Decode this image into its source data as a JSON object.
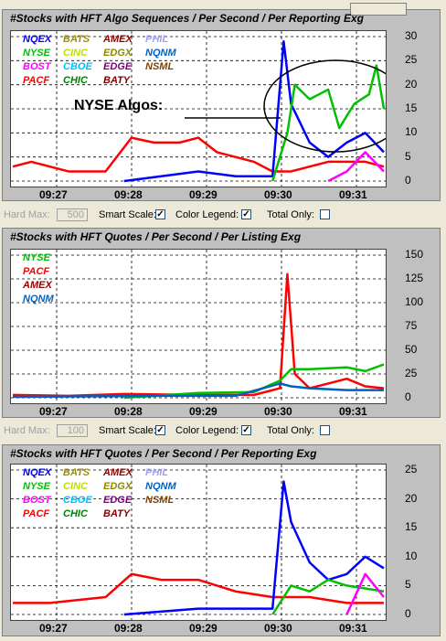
{
  "panels": [
    {
      "id": "p1",
      "title": "#Stocks with HFT Algo Sequences / Per Second / Per Reporting Exg",
      "legend": [
        {
          "name": "NQEX",
          "color": "#0000ff"
        },
        {
          "name": "BATS",
          "color": "#a09000"
        },
        {
          "name": "AMEX",
          "color": "#900000"
        },
        {
          "name": "PHIL",
          "color": "#a0a0ff"
        },
        {
          "name": "NYSE",
          "color": "#00c000"
        },
        {
          "name": "CINC",
          "color": "#c0e000"
        },
        {
          "name": "EDGX",
          "color": "#8a8a00"
        },
        {
          "name": "NQNM",
          "color": "#0060c0"
        },
        {
          "name": "BOST",
          "color": "#ff00ff"
        },
        {
          "name": "CBOE",
          "color": "#00c0ff"
        },
        {
          "name": "EDGE",
          "color": "#800080"
        },
        {
          "name": "NSML",
          "color": "#804000"
        },
        {
          "name": "PACF",
          "color": "#ff0000"
        },
        {
          "name": "CHIC",
          "color": "#008000"
        },
        {
          "name": "BATY",
          "color": "#800000"
        }
      ],
      "yticks": [
        "30",
        "25",
        "20",
        "15",
        "10",
        "5",
        "0"
      ],
      "xticks": [
        "09:27",
        "09:28",
        "09:29",
        "09:30",
        "09:31"
      ],
      "annotation": "NYSE Algos:"
    },
    {
      "id": "p2",
      "title": "#Stocks with HFT Quotes / Per Second / Per Listing Exg",
      "legend": [
        {
          "name": "NYSE",
          "color": "#00c000"
        },
        {
          "name": "PACF",
          "color": "#ff0000"
        },
        {
          "name": "AMEX",
          "color": "#900000"
        },
        {
          "name": "NQNM",
          "color": "#0060c0"
        }
      ],
      "yticks": [
        "150",
        "125",
        "100",
        "75",
        "50",
        "25",
        "0"
      ],
      "xticks": [
        "09:27",
        "09:28",
        "09:29",
        "09:30",
        "09:31"
      ]
    },
    {
      "id": "p3",
      "title": "#Stocks with HFT Quotes / Per Second / Per Reporting Exg",
      "legend": [
        {
          "name": "NQEX",
          "color": "#0000ff"
        },
        {
          "name": "BATS",
          "color": "#a09000"
        },
        {
          "name": "AMEX",
          "color": "#900000"
        },
        {
          "name": "PHIL",
          "color": "#a0a0ff"
        },
        {
          "name": "NYSE",
          "color": "#00c000"
        },
        {
          "name": "CINC",
          "color": "#c0e000"
        },
        {
          "name": "EDGX",
          "color": "#8a8a00"
        },
        {
          "name": "NQNM",
          "color": "#0060c0"
        },
        {
          "name": "BOST",
          "color": "#ff00ff"
        },
        {
          "name": "CBOE",
          "color": "#00c0ff"
        },
        {
          "name": "EDGE",
          "color": "#800080"
        },
        {
          "name": "NSML",
          "color": "#804000"
        },
        {
          "name": "PACF",
          "color": "#ff0000"
        },
        {
          "name": "CHIC",
          "color": "#008000"
        },
        {
          "name": "BATY",
          "color": "#800000"
        }
      ],
      "yticks": [
        "25",
        "20",
        "15",
        "10",
        "5",
        "0"
      ],
      "xticks": [
        "09:27",
        "09:28",
        "09:29",
        "09:30",
        "09:31"
      ]
    }
  ],
  "controls": {
    "hard_max_label": "Hard Max:",
    "hard_max_value_1": "500",
    "hard_max_value_2": "100",
    "smart_scale_label": "Smart Scale:",
    "color_legend_label": "Color Legend:",
    "total_only_label": "Total Only:",
    "check_mark": "✓"
  },
  "chart_data": [
    {
      "type": "line",
      "title": "#Stocks with HFT Algo Sequences / Per Second / Per Reporting Exg",
      "x_ticks": [
        "09:27",
        "09:28",
        "09:29",
        "09:30",
        "09:31"
      ],
      "ylim": [
        0,
        30
      ],
      "series": [
        {
          "name": "PACF",
          "color": "#ff0000",
          "points": [
            [
              0,
              3
            ],
            [
              0.05,
              4
            ],
            [
              0.15,
              2
            ],
            [
              0.25,
              2
            ],
            [
              0.32,
              9
            ],
            [
              0.38,
              8
            ],
            [
              0.45,
              8
            ],
            [
              0.5,
              9
            ],
            [
              0.55,
              6
            ],
            [
              0.6,
              5
            ],
            [
              0.65,
              4
            ],
            [
              0.7,
              2
            ],
            [
              0.75,
              2
            ],
            [
              0.85,
              4
            ],
            [
              0.95,
              4
            ],
            [
              1.0,
              3
            ]
          ]
        },
        {
          "name": "NQEX",
          "color": "#0000ff",
          "points": [
            [
              0.3,
              0
            ],
            [
              0.4,
              1
            ],
            [
              0.5,
              2
            ],
            [
              0.6,
              1
            ],
            [
              0.7,
              1
            ],
            [
              0.73,
              29
            ],
            [
              0.75,
              16
            ],
            [
              0.8,
              8
            ],
            [
              0.85,
              5
            ],
            [
              0.9,
              8
            ],
            [
              0.95,
              10
            ],
            [
              1.0,
              6
            ]
          ]
        },
        {
          "name": "NYSE",
          "color": "#00c000",
          "points": [
            [
              0.7,
              0
            ],
            [
              0.74,
              10
            ],
            [
              0.76,
              20
            ],
            [
              0.8,
              17
            ],
            [
              0.85,
              19
            ],
            [
              0.88,
              11
            ],
            [
              0.92,
              16
            ],
            [
              0.96,
              18
            ],
            [
              0.98,
              24
            ],
            [
              1.0,
              15
            ]
          ]
        },
        {
          "name": "BOST",
          "color": "#ff00ff",
          "points": [
            [
              0.85,
              0
            ],
            [
              0.9,
              2
            ],
            [
              0.95,
              6
            ],
            [
              1.0,
              2
            ]
          ]
        }
      ]
    },
    {
      "type": "line",
      "title": "#Stocks with HFT Quotes / Per Second / Per Listing Exg",
      "x_ticks": [
        "09:27",
        "09:28",
        "09:29",
        "09:30",
        "09:31"
      ],
      "ylim": [
        0,
        150
      ],
      "series": [
        {
          "name": "PACF",
          "color": "#ff0000",
          "points": [
            [
              0,
              3
            ],
            [
              0.15,
              2
            ],
            [
              0.3,
              4
            ],
            [
              0.5,
              3
            ],
            [
              0.65,
              3
            ],
            [
              0.72,
              10
            ],
            [
              0.74,
              130
            ],
            [
              0.76,
              25
            ],
            [
              0.8,
              10
            ],
            [
              0.85,
              15
            ],
            [
              0.9,
              20
            ],
            [
              0.95,
              12
            ],
            [
              1.0,
              10
            ]
          ]
        },
        {
          "name": "NYSE",
          "color": "#00c000",
          "points": [
            [
              0.3,
              0
            ],
            [
              0.5,
              5
            ],
            [
              0.65,
              6
            ],
            [
              0.72,
              18
            ],
            [
              0.75,
              30
            ],
            [
              0.8,
              30
            ],
            [
              0.9,
              32
            ],
            [
              0.95,
              28
            ],
            [
              1.0,
              35
            ]
          ]
        },
        {
          "name": "NQNM",
          "color": "#0060c0",
          "points": [
            [
              0,
              1
            ],
            [
              0.4,
              2
            ],
            [
              0.6,
              2
            ],
            [
              0.72,
              15
            ],
            [
              0.75,
              12
            ],
            [
              0.8,
              10
            ],
            [
              0.9,
              8
            ],
            [
              1.0,
              8
            ]
          ]
        }
      ]
    },
    {
      "type": "line",
      "title": "#Stocks with HFT Quotes / Per Second / Per Reporting Exg",
      "x_ticks": [
        "09:27",
        "09:28",
        "09:29",
        "09:30",
        "09:31"
      ],
      "ylim": [
        0,
        25
      ],
      "series": [
        {
          "name": "PACF",
          "color": "#ff0000",
          "points": [
            [
              0,
              2
            ],
            [
              0.1,
              2
            ],
            [
              0.25,
              3
            ],
            [
              0.32,
              7
            ],
            [
              0.4,
              6
            ],
            [
              0.5,
              6
            ],
            [
              0.6,
              4
            ],
            [
              0.7,
              3
            ],
            [
              0.8,
              3
            ],
            [
              0.9,
              2
            ],
            [
              1.0,
              2
            ]
          ]
        },
        {
          "name": "NQEX",
          "color": "#0000ff",
          "points": [
            [
              0.3,
              0
            ],
            [
              0.5,
              1
            ],
            [
              0.7,
              1
            ],
            [
              0.73,
              23
            ],
            [
              0.75,
              16
            ],
            [
              0.8,
              9
            ],
            [
              0.85,
              6
            ],
            [
              0.9,
              7
            ],
            [
              0.95,
              10
            ],
            [
              1.0,
              8
            ]
          ]
        },
        {
          "name": "NYSE",
          "color": "#00c000",
          "points": [
            [
              0.7,
              0
            ],
            [
              0.75,
              5
            ],
            [
              0.8,
              4
            ],
            [
              0.85,
              6
            ],
            [
              0.9,
              5
            ],
            [
              1.0,
              4
            ]
          ]
        },
        {
          "name": "BOST",
          "color": "#ff00ff",
          "points": [
            [
              0.9,
              0
            ],
            [
              0.95,
              7
            ],
            [
              1.0,
              3
            ]
          ]
        }
      ]
    }
  ]
}
